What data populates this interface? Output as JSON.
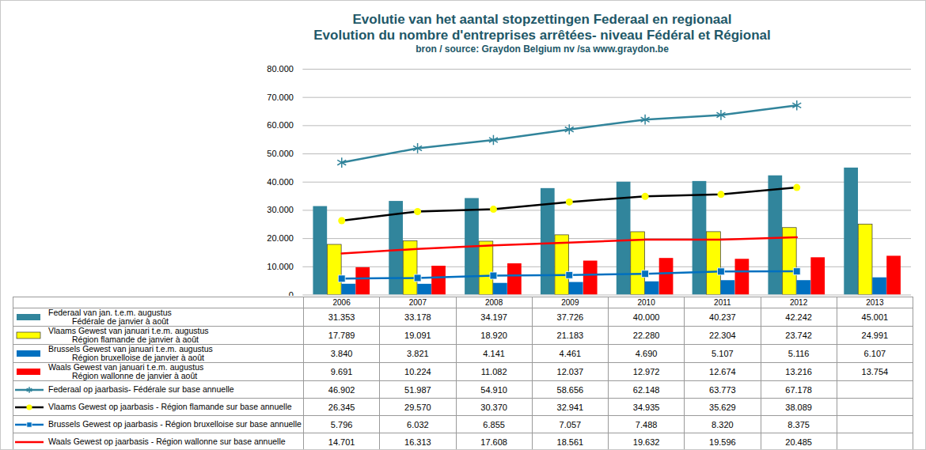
{
  "chart_data": {
    "type": "bar",
    "title": "Evolutie van het aantal stopzettingen Federaal en regionaal\nEvolution du nombre d'entreprises arrêtées- niveau Fédéral et Régional",
    "subtitle": "bron / source: Graydon Belgium nv /sa www.graydon.be",
    "categories": [
      "2006",
      "2007",
      "2008",
      "2009",
      "2010",
      "2011",
      "2012",
      "2013"
    ],
    "ylim": [
      0,
      80000
    ],
    "yticks": [
      0,
      {
        "value": 10000,
        "label": "10.000"
      },
      {
        "value": 20000,
        "label": "20.000"
      },
      {
        "value": 30000,
        "label": "30.000"
      },
      {
        "value": 40000,
        "label": "40.000"
      },
      {
        "value": 50000,
        "label": "50.000"
      },
      {
        "value": 60000,
        "label": "60.000"
      },
      {
        "value": 70000,
        "label": "70.000"
      },
      {
        "value": 80000,
        "label": "80.000"
      }
    ],
    "grid": true,
    "series": [
      {
        "name": "Federaal van jan. t.e.m. augustus\nFédérale de janvier à août",
        "type": "bar",
        "color": "#31859c",
        "values": [
          31353,
          33178,
          34197,
          37726,
          40000,
          40237,
          42242,
          45001
        ],
        "value_labels": [
          "31.353",
          "33.178",
          "34.197",
          "37.726",
          "40.000",
          "40.237",
          "42.242",
          "45.001"
        ]
      },
      {
        "name": "Vlaams Gewest van januari t.e.m. augustus\nRégion flamande de janvier à août",
        "type": "bar",
        "color": "#ffff00",
        "values": [
          17789,
          19091,
          18920,
          21183,
          22280,
          22304,
          23742,
          24991
        ],
        "value_labels": [
          "17.789",
          "19.091",
          "18.920",
          "21.183",
          "22.280",
          "22.304",
          "23.742",
          "24.991"
        ]
      },
      {
        "name": "Brussels Gewest van januari t.e.m. augustus\nRégion bruxelloise de janvier à août",
        "type": "bar",
        "color": "#0070c0",
        "values": [
          3840,
          3821,
          4141,
          4461,
          4690,
          5107,
          5116,
          6107
        ],
        "value_labels": [
          "3.840",
          "3.821",
          "4.141",
          "4.461",
          "4.690",
          "5.107",
          "5.116",
          "6.107"
        ]
      },
      {
        "name": "Waals Gewest van januari t.e.m. augustus\nRégion wallonne de janvier à août",
        "type": "bar",
        "color": "#ff0000",
        "values": [
          9691,
          10224,
          11082,
          12037,
          12972,
          12674,
          13216,
          13754
        ],
        "value_labels": [
          "9.691",
          "10.224",
          "11.082",
          "12.037",
          "12.972",
          "12.674",
          "13.216",
          "13.754"
        ]
      },
      {
        "name": "Federaal op jaarbasis- Fédérale sur base annuelle",
        "type": "line",
        "color": "#31849b",
        "marker": "asterisk",
        "line_style": "solid",
        "values": [
          46902,
          51987,
          54910,
          58656,
          62148,
          63773,
          67178,
          null
        ],
        "value_labels": [
          "46.902",
          "51.987",
          "54.910",
          "58.656",
          "62.148",
          "63.773",
          "67.178",
          null
        ]
      },
      {
        "name": "Vlaams Gewest op jaarbasis - Région flamande sur base annuelle",
        "type": "line",
        "color": "#000000",
        "marker": "circle",
        "line_style": "solid",
        "values": [
          26345,
          29570,
          30370,
          32941,
          34935,
          35629,
          38089,
          null
        ],
        "value_labels": [
          "26.345",
          "29.570",
          "30.370",
          "32.941",
          "34.935",
          "35.629",
          "38.089",
          null
        ]
      },
      {
        "name": "Brussels Gewest op jaarbasis - Région bruxelloise sur base annuelle",
        "type": "line",
        "color": "#0070c0",
        "marker": "square",
        "line_style": "solid",
        "values": [
          5796,
          6032,
          6855,
          7057,
          7488,
          8320,
          8375,
          null
        ],
        "value_labels": [
          "5.796",
          "6.032",
          "6.855",
          "7.057",
          "7.488",
          "8.320",
          "8.375",
          null
        ]
      },
      {
        "name": "Waals Gewest op jaarbasis - Région wallonne sur base annuelle",
        "type": "line",
        "color": "#ff0000",
        "marker": "none",
        "line_style": "solid",
        "values": [
          14701,
          16313,
          17608,
          18561,
          19632,
          19596,
          20485,
          null
        ],
        "value_labels": [
          "14.701",
          "16.313",
          "17.608",
          "18.561",
          "19.632",
          "19.596",
          "20.485",
          null
        ]
      }
    ]
  }
}
